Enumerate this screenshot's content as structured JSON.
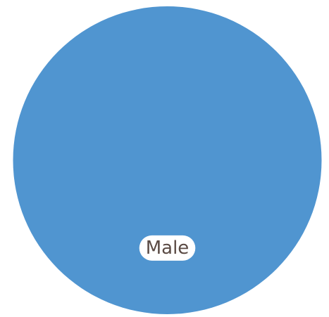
{
  "chart_data": {
    "type": "pie",
    "categories": [
      "Male"
    ],
    "values": [
      100
    ],
    "colors": [
      "#5095d0"
    ],
    "label_background": "#ffffff",
    "label_text_color": "#5a4a44",
    "legend": "none"
  }
}
